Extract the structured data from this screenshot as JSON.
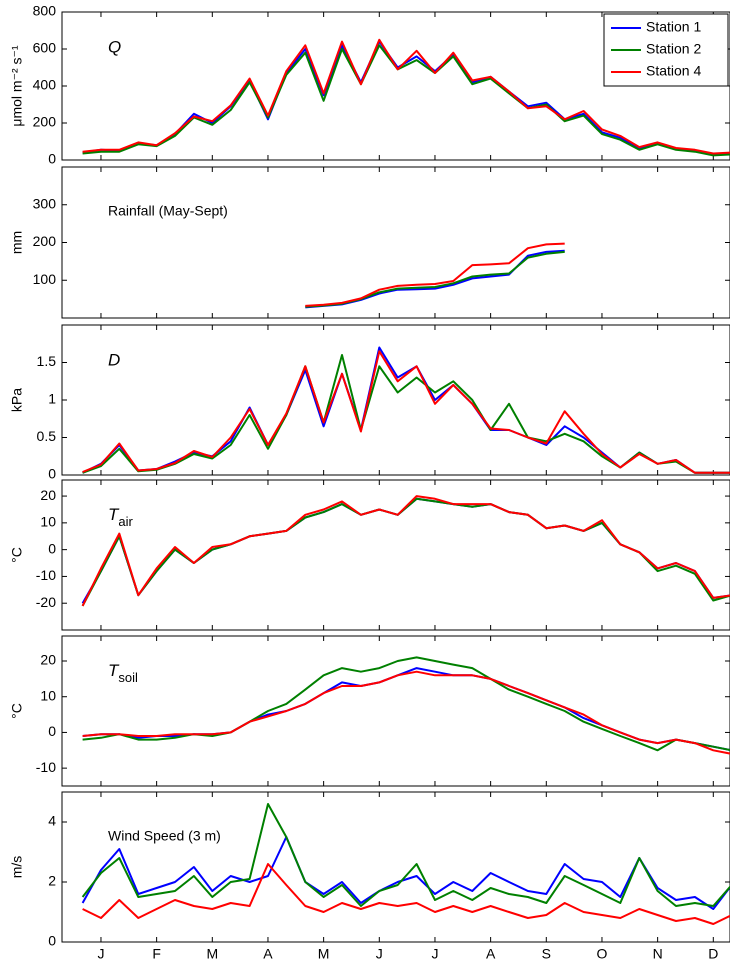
{
  "chart_data": [
    {
      "type": "line",
      "annotation": "Q",
      "annotation_style": "italic",
      "ylabel": "μmol m⁻² s⁻¹",
      "xlim": [
        -0.2,
        11.8
      ],
      "ylim": [
        0,
        800
      ],
      "yticks": [
        0,
        200,
        400,
        600,
        800
      ],
      "legend": "upper right",
      "x": [
        0.17,
        0.5,
        0.83,
        1.17,
        1.5,
        1.83,
        2.17,
        2.5,
        2.83,
        3.17,
        3.5,
        3.83,
        4.17,
        4.5,
        4.83,
        5.17,
        5.5,
        5.83,
        6.17,
        6.5,
        6.83,
        7.17,
        7.5,
        7.83,
        8.17,
        8.5,
        8.83,
        9.17,
        9.5,
        9.83,
        10.17,
        10.5,
        10.83,
        11.17,
        11.5,
        11.83
      ],
      "series": [
        {
          "name": "Station 1",
          "color": "#0000ff",
          "values": [
            40,
            55,
            50,
            90,
            80,
            140,
            250,
            200,
            290,
            430,
            220,
            470,
            600,
            350,
            620,
            420,
            640,
            500,
            560,
            480,
            570,
            420,
            450,
            370,
            290,
            310,
            220,
            250,
            150,
            120,
            60,
            90,
            60,
            50,
            30,
            35
          ]
        },
        {
          "name": "Station 2",
          "color": "#008000",
          "values": [
            35,
            45,
            45,
            85,
            75,
            130,
            230,
            190,
            270,
            420,
            230,
            460,
            580,
            320,
            600,
            410,
            620,
            490,
            540,
            470,
            560,
            410,
            440,
            360,
            280,
            300,
            210,
            240,
            140,
            110,
            55,
            85,
            55,
            45,
            25,
            30
          ]
        },
        {
          "name": "Station 4",
          "color": "#ff0000",
          "values": [
            45,
            55,
            55,
            95,
            80,
            145,
            235,
            210,
            295,
            440,
            240,
            480,
            620,
            360,
            640,
            410,
            650,
            490,
            590,
            470,
            580,
            430,
            450,
            370,
            280,
            290,
            220,
            265,
            165,
            130,
            70,
            95,
            65,
            55,
            35,
            40
          ]
        }
      ]
    },
    {
      "type": "line",
      "annotation": "Rainfall (May-Sept)",
      "annotation_style": "normal",
      "ylabel": "mm",
      "xlim": [
        -0.2,
        11.8
      ],
      "ylim": [
        0,
        400
      ],
      "yticks": [
        100,
        200,
        300
      ],
      "x": [
        0.17,
        0.5,
        0.83,
        1.17,
        1.5,
        1.83,
        2.17,
        2.5,
        2.83,
        3.17,
        3.5,
        3.83,
        4.17,
        4.5,
        4.83,
        5.17,
        5.5,
        5.83,
        6.17,
        6.5,
        6.83,
        7.17,
        7.5,
        7.83,
        8.17,
        8.5,
        8.83,
        9.17,
        9.5,
        9.83,
        10.17,
        10.5,
        10.83,
        11.17,
        11.5,
        11.83
      ],
      "series": [
        {
          "color": "#0000ff",
          "values": [
            null,
            null,
            null,
            null,
            null,
            null,
            null,
            null,
            null,
            null,
            null,
            null,
            28,
            32,
            36,
            48,
            65,
            75,
            76,
            78,
            88,
            105,
            110,
            115,
            165,
            175,
            178,
            null,
            null,
            null,
            null,
            null,
            null,
            null,
            null,
            null
          ]
        },
        {
          "color": "#008000",
          "values": [
            null,
            null,
            null,
            null,
            null,
            null,
            null,
            null,
            null,
            null,
            null,
            null,
            30,
            33,
            38,
            50,
            68,
            78,
            80,
            82,
            92,
            110,
            115,
            118,
            160,
            170,
            175,
            null,
            null,
            null,
            null,
            null,
            null,
            null,
            null,
            null
          ]
        },
        {
          "color": "#ff0000",
          "values": [
            null,
            null,
            null,
            null,
            null,
            null,
            null,
            null,
            null,
            null,
            null,
            null,
            32,
            35,
            40,
            52,
            75,
            85,
            88,
            90,
            98,
            140,
            142,
            145,
            185,
            195,
            197,
            null,
            null,
            null,
            null,
            null,
            null,
            null,
            null,
            null
          ]
        }
      ]
    },
    {
      "type": "line",
      "annotation": "D",
      "annotation_style": "italic",
      "ylabel": "kPa",
      "xlim": [
        -0.2,
        11.8
      ],
      "ylim": [
        0,
        2
      ],
      "yticks": [
        0,
        0.5,
        1,
        1.5
      ],
      "x": [
        0.17,
        0.5,
        0.83,
        1.17,
        1.5,
        1.83,
        2.17,
        2.5,
        2.83,
        3.17,
        3.5,
        3.83,
        4.17,
        4.5,
        4.83,
        5.17,
        5.5,
        5.83,
        6.17,
        6.5,
        6.83,
        7.17,
        7.5,
        7.83,
        8.17,
        8.5,
        8.83,
        9.17,
        9.5,
        9.83,
        10.17,
        10.5,
        10.83,
        11.17,
        11.5,
        11.83
      ],
      "series": [
        {
          "color": "#0000ff",
          "values": [
            0.03,
            0.15,
            0.4,
            0.06,
            0.08,
            0.18,
            0.3,
            0.25,
            0.45,
            0.9,
            0.4,
            0.8,
            1.4,
            0.65,
            1.35,
            0.6,
            1.7,
            1.3,
            1.45,
            1.0,
            1.2,
            0.95,
            0.6,
            0.6,
            0.5,
            0.4,
            0.65,
            0.5,
            0.3,
            0.1,
            0.3,
            0.15,
            0.2,
            0.03,
            0.03,
            0.03
          ]
        },
        {
          "color": "#008000",
          "values": [
            0.03,
            0.12,
            0.35,
            0.05,
            0.07,
            0.15,
            0.28,
            0.22,
            0.4,
            0.8,
            0.35,
            0.8,
            1.45,
            0.7,
            1.6,
            0.6,
            1.45,
            1.1,
            1.3,
            1.1,
            1.25,
            1.0,
            0.6,
            0.95,
            0.5,
            0.45,
            0.55,
            0.45,
            0.25,
            0.1,
            0.3,
            0.15,
            0.18,
            0.03,
            0.03,
            0.03
          ]
        },
        {
          "color": "#ff0000",
          "values": [
            0.04,
            0.14,
            0.42,
            0.06,
            0.08,
            0.16,
            0.32,
            0.24,
            0.5,
            0.88,
            0.4,
            0.82,
            1.45,
            0.7,
            1.35,
            0.58,
            1.65,
            1.25,
            1.45,
            0.95,
            1.2,
            0.95,
            0.62,
            0.6,
            0.5,
            0.42,
            0.85,
            0.55,
            0.28,
            0.1,
            0.28,
            0.15,
            0.2,
            0.03,
            0.03,
            0.03
          ]
        }
      ]
    },
    {
      "type": "line",
      "annotation": [
        "T",
        "air"
      ],
      "annotation_style": "italic",
      "ylabel": "°C",
      "xlim": [
        -0.2,
        11.8
      ],
      "ylim": [
        -30,
        26
      ],
      "yticks": [
        -20,
        -10,
        0,
        10,
        20
      ],
      "x": [
        0.17,
        0.5,
        0.83,
        1.17,
        1.5,
        1.83,
        2.17,
        2.5,
        2.83,
        3.17,
        3.5,
        3.83,
        4.17,
        4.5,
        4.83,
        5.17,
        5.5,
        5.83,
        6.17,
        6.5,
        6.83,
        7.17,
        7.5,
        7.83,
        8.17,
        8.5,
        8.83,
        9.17,
        9.5,
        9.83,
        10.17,
        10.5,
        10.83,
        11.17,
        11.5,
        11.83
      ],
      "series": [
        {
          "color": "#0000ff",
          "values": [
            -20,
            -8,
            5,
            -17,
            -8,
            0,
            -5,
            0,
            2,
            5,
            6,
            7,
            12,
            14,
            17,
            13,
            15,
            13,
            19,
            18,
            17,
            16,
            17,
            14,
            13,
            8,
            9,
            7,
            10,
            2,
            -1,
            -7,
            -5,
            -8,
            -18,
            -17
          ]
        },
        {
          "color": "#008000",
          "values": [
            -21,
            -8,
            5,
            -17,
            -8,
            0,
            -5,
            0,
            2,
            5,
            6,
            7,
            12,
            14,
            17,
            13,
            15,
            13,
            19,
            18,
            17,
            16,
            17,
            14,
            13,
            8,
            9,
            7,
            10,
            2,
            -1,
            -8,
            -6,
            -9,
            -19,
            -17
          ]
        },
        {
          "color": "#ff0000",
          "values": [
            -21,
            -7,
            6,
            -17,
            -7,
            1,
            -5,
            1,
            2,
            5,
            6,
            7,
            13,
            15,
            18,
            13,
            15,
            13,
            20,
            19,
            17,
            17,
            17,
            14,
            13,
            8,
            9,
            7,
            11,
            2,
            -1,
            -7,
            -5,
            -8,
            -18,
            -17
          ]
        }
      ]
    },
    {
      "type": "line",
      "annotation": [
        "T",
        "soil"
      ],
      "annotation_style": "italic",
      "ylabel": "°C",
      "xlim": [
        -0.2,
        11.8
      ],
      "ylim": [
        -15,
        27
      ],
      "yticks": [
        -10,
        0,
        10,
        20
      ],
      "x": [
        0.17,
        0.5,
        0.83,
        1.17,
        1.5,
        1.83,
        2.17,
        2.5,
        2.83,
        3.17,
        3.5,
        3.83,
        4.17,
        4.5,
        4.83,
        5.17,
        5.5,
        5.83,
        6.17,
        6.5,
        6.83,
        7.17,
        7.5,
        7.83,
        8.17,
        8.5,
        8.83,
        9.17,
        9.5,
        9.83,
        10.17,
        10.5,
        10.83,
        11.17,
        11.5,
        11.83
      ],
      "series": [
        {
          "color": "#0000ff",
          "values": [
            -1,
            -0.5,
            -0.5,
            -1.5,
            -1,
            -1,
            -0.5,
            -0.5,
            0,
            3,
            5,
            6,
            8,
            11,
            14,
            13,
            14,
            16,
            18,
            17,
            16,
            16,
            15,
            13,
            11,
            9,
            7,
            4,
            2,
            0,
            -2,
            -3,
            -2,
            -3,
            -4,
            -5
          ]
        },
        {
          "color": "#008000",
          "values": [
            -2,
            -1.5,
            -0.5,
            -2,
            -2,
            -1.5,
            -0.5,
            -1,
            0,
            3,
            6,
            8,
            12,
            16,
            18,
            17,
            18,
            20,
            21,
            20,
            19,
            18,
            15,
            12,
            10,
            8,
            6,
            3,
            1,
            -1,
            -3,
            -5,
            -2,
            -3,
            -4,
            -5
          ]
        },
        {
          "color": "#ff0000",
          "values": [
            -1,
            -0.5,
            -0.5,
            -1,
            -1,
            -0.5,
            -0.5,
            -0.5,
            0,
            3,
            4.5,
            6,
            8,
            11,
            13,
            13,
            14,
            16,
            17,
            16,
            16,
            16,
            15,
            13,
            11,
            9,
            7,
            5,
            2,
            0,
            -2,
            -3,
            -2,
            -3,
            -5,
            -6
          ]
        }
      ]
    },
    {
      "type": "line",
      "annotation": "Wind Speed (3 m)",
      "annotation_style": "normal",
      "ylabel": "m/s",
      "xlim": [
        -0.2,
        11.8
      ],
      "ylim": [
        0,
        5
      ],
      "yticks": [
        0,
        2,
        4
      ],
      "xticks": [
        {
          "value": 0.5,
          "label": "J"
        },
        {
          "value": 1.5,
          "label": "F"
        },
        {
          "value": 2.5,
          "label": "M"
        },
        {
          "value": 3.5,
          "label": "A"
        },
        {
          "value": 4.5,
          "label": "M"
        },
        {
          "value": 5.5,
          "label": "J"
        },
        {
          "value": 6.5,
          "label": "J"
        },
        {
          "value": 7.5,
          "label": "A"
        },
        {
          "value": 8.5,
          "label": "S"
        },
        {
          "value": 9.5,
          "label": "O"
        },
        {
          "value": 10.5,
          "label": "N"
        },
        {
          "value": 11.5,
          "label": "D"
        }
      ],
      "x": [
        0.17,
        0.5,
        0.83,
        1.17,
        1.5,
        1.83,
        2.17,
        2.5,
        2.83,
        3.17,
        3.5,
        3.83,
        4.17,
        4.5,
        4.83,
        5.17,
        5.5,
        5.83,
        6.17,
        6.5,
        6.83,
        7.17,
        7.5,
        7.83,
        8.17,
        8.5,
        8.83,
        9.17,
        9.5,
        9.83,
        10.17,
        10.5,
        10.83,
        11.17,
        11.5,
        11.83
      ],
      "series": [
        {
          "color": "#0000ff",
          "values": [
            1.3,
            2.4,
            3.1,
            1.6,
            1.8,
            2.0,
            2.5,
            1.7,
            2.2,
            2.0,
            2.2,
            3.5,
            2.0,
            1.6,
            2.0,
            1.3,
            1.7,
            2.0,
            2.2,
            1.6,
            2.0,
            1.7,
            2.3,
            2.0,
            1.7,
            1.6,
            2.6,
            2.1,
            2.0,
            1.5,
            2.8,
            1.8,
            1.4,
            1.5,
            1.1,
            1.9
          ]
        },
        {
          "color": "#008000",
          "values": [
            1.5,
            2.3,
            2.8,
            1.5,
            1.6,
            1.7,
            2.2,
            1.5,
            2.0,
            2.1,
            4.6,
            3.5,
            2.0,
            1.5,
            1.9,
            1.2,
            1.7,
            1.9,
            2.6,
            1.4,
            1.7,
            1.4,
            1.8,
            1.6,
            1.5,
            1.3,
            2.2,
            1.9,
            1.6,
            1.3,
            2.8,
            1.7,
            1.2,
            1.3,
            1.2,
            1.9
          ]
        },
        {
          "color": "#ff0000",
          "values": [
            1.1,
            0.8,
            1.4,
            0.8,
            1.1,
            1.4,
            1.2,
            1.1,
            1.3,
            1.2,
            2.6,
            1.9,
            1.2,
            1.0,
            1.3,
            1.1,
            1.3,
            1.2,
            1.3,
            1.0,
            1.2,
            1.0,
            1.2,
            1.0,
            0.8,
            0.9,
            1.3,
            1.0,
            0.9,
            0.8,
            1.1,
            0.9,
            0.7,
            0.8,
            0.6,
            0.9
          ]
        }
      ]
    }
  ]
}
